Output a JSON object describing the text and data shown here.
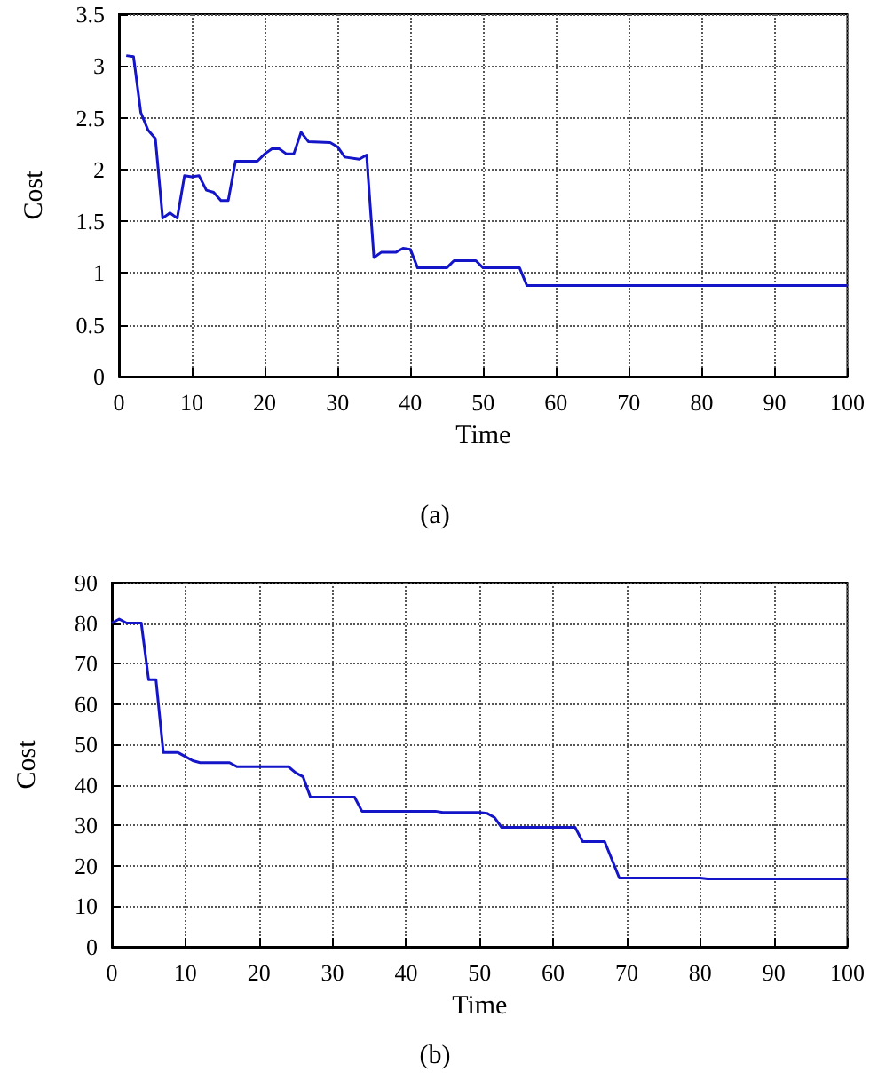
{
  "chart_data": [
    {
      "type": "line",
      "xlabel": "Time",
      "ylabel": "Cost",
      "annotations": [
        "(a)"
      ],
      "xlim": [
        0,
        100
      ],
      "xticks": [
        0,
        10,
        20,
        30,
        40,
        50,
        60,
        70,
        80,
        90,
        100
      ],
      "ylim": [
        0,
        3.5
      ],
      "yticks": [
        0,
        0.5,
        1,
        1.5,
        2,
        2.5,
        3,
        3.5
      ],
      "grid": true,
      "marker": "none",
      "line_style": "solid",
      "series": [
        {
          "color": "#1414c8",
          "x": [
            1,
            2,
            3,
            4,
            5,
            6,
            7,
            8,
            9,
            10,
            11,
            12,
            13,
            14,
            15,
            16,
            19,
            20,
            21,
            22,
            23,
            24,
            25,
            26,
            29,
            30,
            31,
            33,
            34,
            35,
            36,
            38,
            39,
            40,
            41,
            45,
            46,
            49,
            50,
            55,
            56,
            100
          ],
          "values": [
            3.1,
            3.09,
            2.55,
            2.38,
            2.3,
            1.53,
            1.58,
            1.53,
            1.94,
            1.93,
            1.94,
            1.8,
            1.78,
            1.7,
            1.7,
            2.08,
            2.08,
            2.15,
            2.2,
            2.2,
            2.15,
            2.15,
            2.36,
            2.27,
            2.26,
            2.22,
            2.12,
            2.1,
            2.14,
            1.15,
            1.2,
            1.2,
            1.24,
            1.23,
            1.05,
            1.05,
            1.12,
            1.12,
            1.05,
            1.05,
            0.88,
            0.88
          ]
        }
      ]
    },
    {
      "type": "line",
      "xlabel": "Time",
      "ylabel": "Cost",
      "annotations": [
        "(b)"
      ],
      "xlim": [
        0,
        100
      ],
      "xticks": [
        0,
        10,
        20,
        30,
        40,
        50,
        60,
        70,
        80,
        90,
        100
      ],
      "ylim": [
        0,
        90
      ],
      "yticks": [
        0,
        10,
        20,
        30,
        40,
        50,
        60,
        70,
        80,
        90
      ],
      "grid": true,
      "marker": "none",
      "line_style": "solid",
      "series": [
        {
          "color": "#1414c8",
          "x": [
            0,
            1,
            2,
            4,
            5,
            6,
            7,
            9,
            10,
            11,
            12,
            16,
            17,
            24,
            25,
            26,
            27,
            33,
            34,
            44,
            45,
            50,
            51,
            52,
            53,
            62,
            63,
            64,
            67,
            69,
            80,
            81,
            100
          ],
          "values": [
            80,
            81,
            80,
            80,
            66,
            66,
            48,
            48,
            47,
            46,
            45.5,
            45.5,
            44.5,
            44.5,
            43,
            42,
            37,
            37,
            33.5,
            33.5,
            33.2,
            33.2,
            33,
            32,
            29.5,
            29.5,
            29.5,
            26,
            26,
            17,
            17,
            16.8,
            16.8
          ]
        }
      ]
    }
  ]
}
